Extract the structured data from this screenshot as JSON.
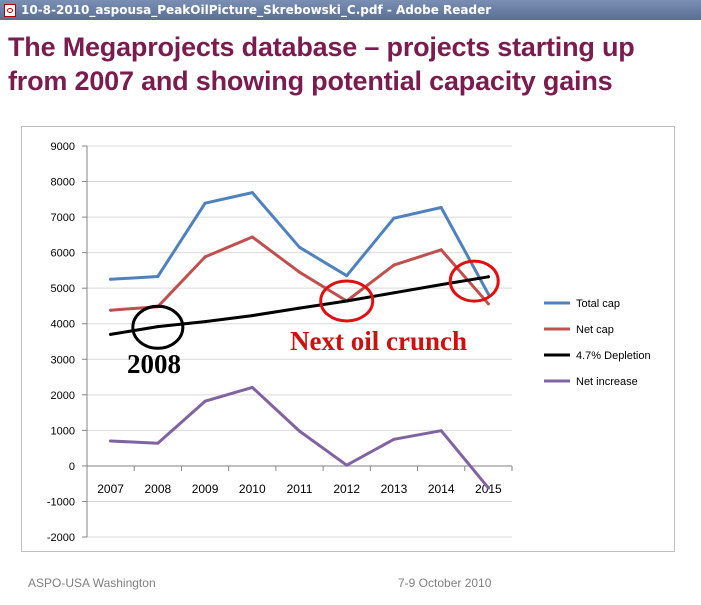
{
  "window": {
    "title": "10-8-2010_aspousa_PeakOilPicture_Skrebowski_C.pdf - Adobe Reader",
    "icon": "pdf-document-icon"
  },
  "slide": {
    "title": "The Megaprojects database – projects starting up from 2007 and showing potential capacity gains",
    "footer_left": "ASPO-USA   Washington",
    "footer_right": "7-9 October 2010"
  },
  "chart_data": {
    "type": "line",
    "x": [
      2007,
      2008,
      2009,
      2010,
      2011,
      2012,
      2013,
      2014,
      2015
    ],
    "xticks": [
      "2007",
      "2008",
      "2009",
      "2010",
      "2011",
      "2012",
      "2013",
      "2014",
      "2015"
    ],
    "ylim": [
      -2000,
      9000
    ],
    "yticks": [
      "9000",
      "8000",
      "7000",
      "6000",
      "5000",
      "4000",
      "3000",
      "2000",
      "1000",
      "0",
      "-1000",
      "-2000"
    ],
    "grid": true,
    "legend_position": "right",
    "series": [
      {
        "name": "Total cap",
        "color": "#4f81bd",
        "values": [
          5250,
          5330,
          7390,
          7690,
          6150,
          5350,
          6970,
          7270,
          4830
        ]
      },
      {
        "name": "Net cap",
        "color": "#c0504d",
        "values": [
          4380,
          4480,
          5880,
          6440,
          5450,
          4640,
          5650,
          6080,
          4560
        ]
      },
      {
        "name": "4.7% Depletion",
        "color": "#000000",
        "values": [
          3700,
          3920,
          4060,
          4230,
          4440,
          4640,
          4870,
          5100,
          5320
        ]
      },
      {
        "name": "Net increase",
        "color": "#8064a2",
        "values": [
          700,
          640,
          1820,
          2210,
          980,
          20,
          750,
          990,
          -620
        ]
      }
    ],
    "annotations": [
      {
        "text": "2008",
        "color": "#000000"
      },
      {
        "text": "Next oil crunch",
        "color": "#d01010"
      }
    ],
    "circles": [
      {
        "x": 2008,
        "y": 3900,
        "color": "#000000"
      },
      {
        "x": 2012,
        "y": 4640,
        "color": "#e01010"
      },
      {
        "x": 2014.7,
        "y": 5200,
        "color": "#e01010"
      }
    ]
  }
}
